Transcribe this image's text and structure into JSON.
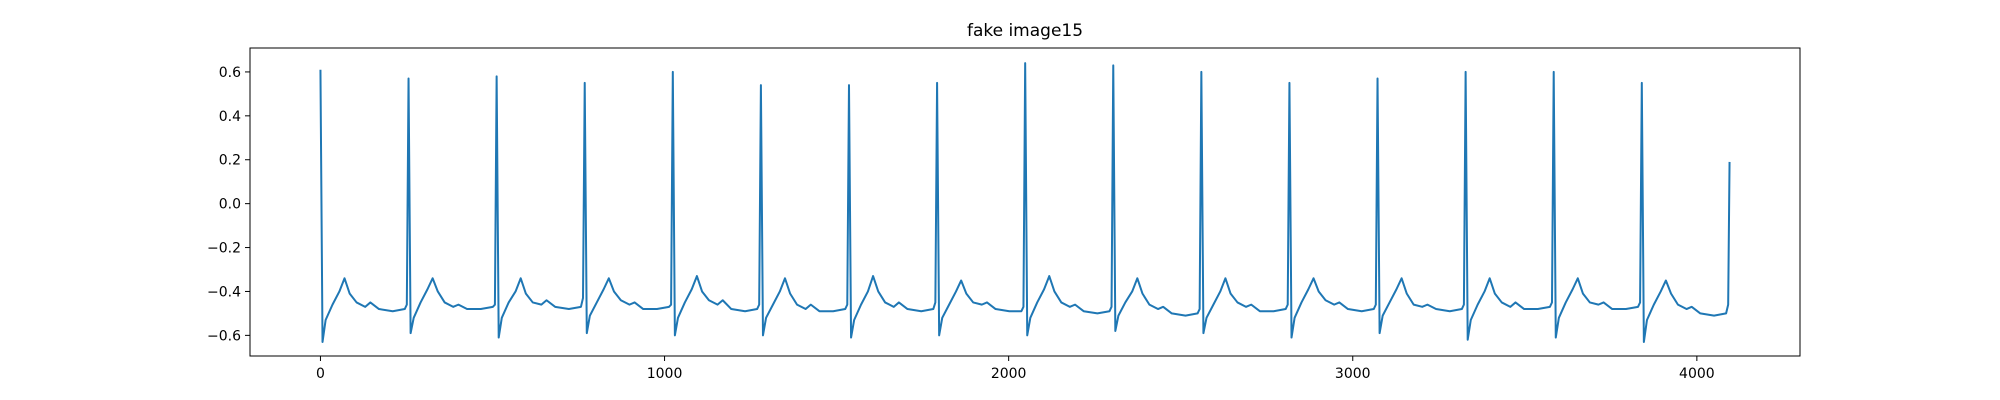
{
  "chart_data": {
    "type": "line",
    "title": "fake image15",
    "color": "#1f77b4",
    "xlim": [
      -204.75,
      4299.75
    ],
    "ylim": [
      -0.694,
      0.709
    ],
    "xticks": [
      0,
      1000,
      2000,
      3000,
      4000
    ],
    "yticks": [
      {
        "value": -0.6,
        "label": "−0.6"
      },
      {
        "value": -0.4,
        "label": "−0.4"
      },
      {
        "value": -0.2,
        "label": "−0.2"
      },
      {
        "value": 0,
        "label": "0.0"
      },
      0.2,
      0.4,
      0.6
    ],
    "x": [
      0,
      6,
      15,
      35,
      55,
      70,
      85,
      105,
      130,
      145,
      170,
      210,
      245,
      251,
      256,
      262,
      271,
      291,
      311,
      326,
      341,
      361,
      386,
      401,
      426,
      466,
      501,
      507,
      512,
      518,
      527,
      547,
      567,
      582,
      597,
      617,
      642,
      657,
      682,
      722,
      757,
      763,
      768,
      774,
      783,
      803,
      823,
      838,
      853,
      873,
      898,
      913,
      938,
      978,
      1013,
      1019,
      1024,
      1030,
      1039,
      1059,
      1079,
      1094,
      1109,
      1129,
      1154,
      1169,
      1194,
      1234,
      1269,
      1275,
      1280,
      1286,
      1295,
      1315,
      1335,
      1350,
      1365,
      1385,
      1410,
      1425,
      1450,
      1490,
      1525,
      1531,
      1536,
      1542,
      1551,
      1571,
      1591,
      1606,
      1621,
      1641,
      1666,
      1681,
      1706,
      1746,
      1781,
      1787,
      1792,
      1798,
      1807,
      1827,
      1847,
      1862,
      1877,
      1897,
      1922,
      1937,
      1962,
      2002,
      2037,
      2043,
      2048,
      2054,
      2063,
      2083,
      2103,
      2118,
      2133,
      2153,
      2178,
      2193,
      2218,
      2258,
      2293,
      2299,
      2304,
      2310,
      2319,
      2339,
      2359,
      2374,
      2389,
      2409,
      2434,
      2449,
      2474,
      2514,
      2549,
      2555,
      2560,
      2566,
      2575,
      2595,
      2615,
      2630,
      2645,
      2665,
      2690,
      2705,
      2730,
      2770,
      2805,
      2811,
      2816,
      2822,
      2831,
      2851,
      2871,
      2886,
      2901,
      2921,
      2946,
      2961,
      2986,
      3026,
      3061,
      3067,
      3072,
      3078,
      3087,
      3107,
      3127,
      3142,
      3157,
      3177,
      3202,
      3217,
      3242,
      3282,
      3317,
      3323,
      3328,
      3334,
      3343,
      3363,
      3383,
      3398,
      3413,
      3433,
      3458,
      3473,
      3498,
      3538,
      3573,
      3579,
      3584,
      3590,
      3599,
      3619,
      3639,
      3654,
      3669,
      3689,
      3714,
      3729,
      3754,
      3794,
      3829,
      3835,
      3840,
      3846,
      3855,
      3875,
      3895,
      3910,
      3925,
      3945,
      3970,
      3985,
      4010,
      4050,
      4085,
      4091,
      4095
    ],
    "values": [
      0.61,
      -0.63,
      -0.53,
      -0.46,
      -0.4,
      -0.34,
      -0.41,
      -0.45,
      -0.47,
      -0.45,
      -0.48,
      -0.49,
      -0.48,
      -0.46,
      0.57,
      -0.59,
      -0.52,
      -0.45,
      -0.39,
      -0.34,
      -0.4,
      -0.45,
      -0.47,
      -0.46,
      -0.48,
      -0.48,
      -0.47,
      -0.46,
      0.58,
      -0.61,
      -0.52,
      -0.45,
      -0.4,
      -0.34,
      -0.41,
      -0.45,
      -0.46,
      -0.44,
      -0.47,
      -0.48,
      -0.47,
      -0.43,
      0.55,
      -0.59,
      -0.51,
      -0.45,
      -0.39,
      -0.34,
      -0.4,
      -0.44,
      -0.46,
      -0.45,
      -0.48,
      -0.48,
      -0.47,
      -0.46,
      0.6,
      -0.6,
      -0.52,
      -0.45,
      -0.39,
      -0.33,
      -0.4,
      -0.44,
      -0.46,
      -0.44,
      -0.48,
      -0.49,
      -0.48,
      -0.46,
      0.54,
      -0.6,
      -0.52,
      -0.46,
      -0.4,
      -0.34,
      -0.41,
      -0.46,
      -0.48,
      -0.46,
      -0.49,
      -0.49,
      -0.48,
      -0.46,
      0.54,
      -0.61,
      -0.53,
      -0.46,
      -0.4,
      -0.33,
      -0.4,
      -0.45,
      -0.47,
      -0.45,
      -0.48,
      -0.49,
      -0.48,
      -0.45,
      0.55,
      -0.6,
      -0.52,
      -0.46,
      -0.4,
      -0.35,
      -0.41,
      -0.45,
      -0.46,
      -0.45,
      -0.48,
      -0.49,
      -0.49,
      -0.47,
      0.64,
      -0.6,
      -0.52,
      -0.45,
      -0.39,
      -0.33,
      -0.4,
      -0.45,
      -0.47,
      -0.46,
      -0.49,
      -0.5,
      -0.49,
      -0.47,
      0.63,
      -0.58,
      -0.51,
      -0.45,
      -0.4,
      -0.34,
      -0.41,
      -0.46,
      -0.48,
      -0.47,
      -0.5,
      -0.51,
      -0.5,
      -0.48,
      0.6,
      -0.59,
      -0.52,
      -0.46,
      -0.4,
      -0.34,
      -0.41,
      -0.45,
      -0.47,
      -0.46,
      -0.49,
      -0.49,
      -0.48,
      -0.46,
      0.55,
      -0.61,
      -0.52,
      -0.45,
      -0.39,
      -0.34,
      -0.4,
      -0.44,
      -0.46,
      -0.45,
      -0.48,
      -0.49,
      -0.48,
      -0.46,
      0.57,
      -0.59,
      -0.51,
      -0.45,
      -0.39,
      -0.34,
      -0.41,
      -0.46,
      -0.47,
      -0.46,
      -0.48,
      -0.49,
      -0.48,
      -0.46,
      0.6,
      -0.62,
      -0.53,
      -0.46,
      -0.4,
      -0.34,
      -0.41,
      -0.45,
      -0.47,
      -0.45,
      -0.48,
      -0.48,
      -0.47,
      -0.45,
      0.6,
      -0.61,
      -0.52,
      -0.45,
      -0.39,
      -0.34,
      -0.41,
      -0.45,
      -0.46,
      -0.45,
      -0.48,
      -0.48,
      -0.47,
      -0.45,
      0.55,
      -0.63,
      -0.53,
      -0.46,
      -0.4,
      -0.35,
      -0.41,
      -0.46,
      -0.48,
      -0.47,
      -0.5,
      -0.51,
      -0.5,
      -0.46,
      0.19
    ]
  }
}
